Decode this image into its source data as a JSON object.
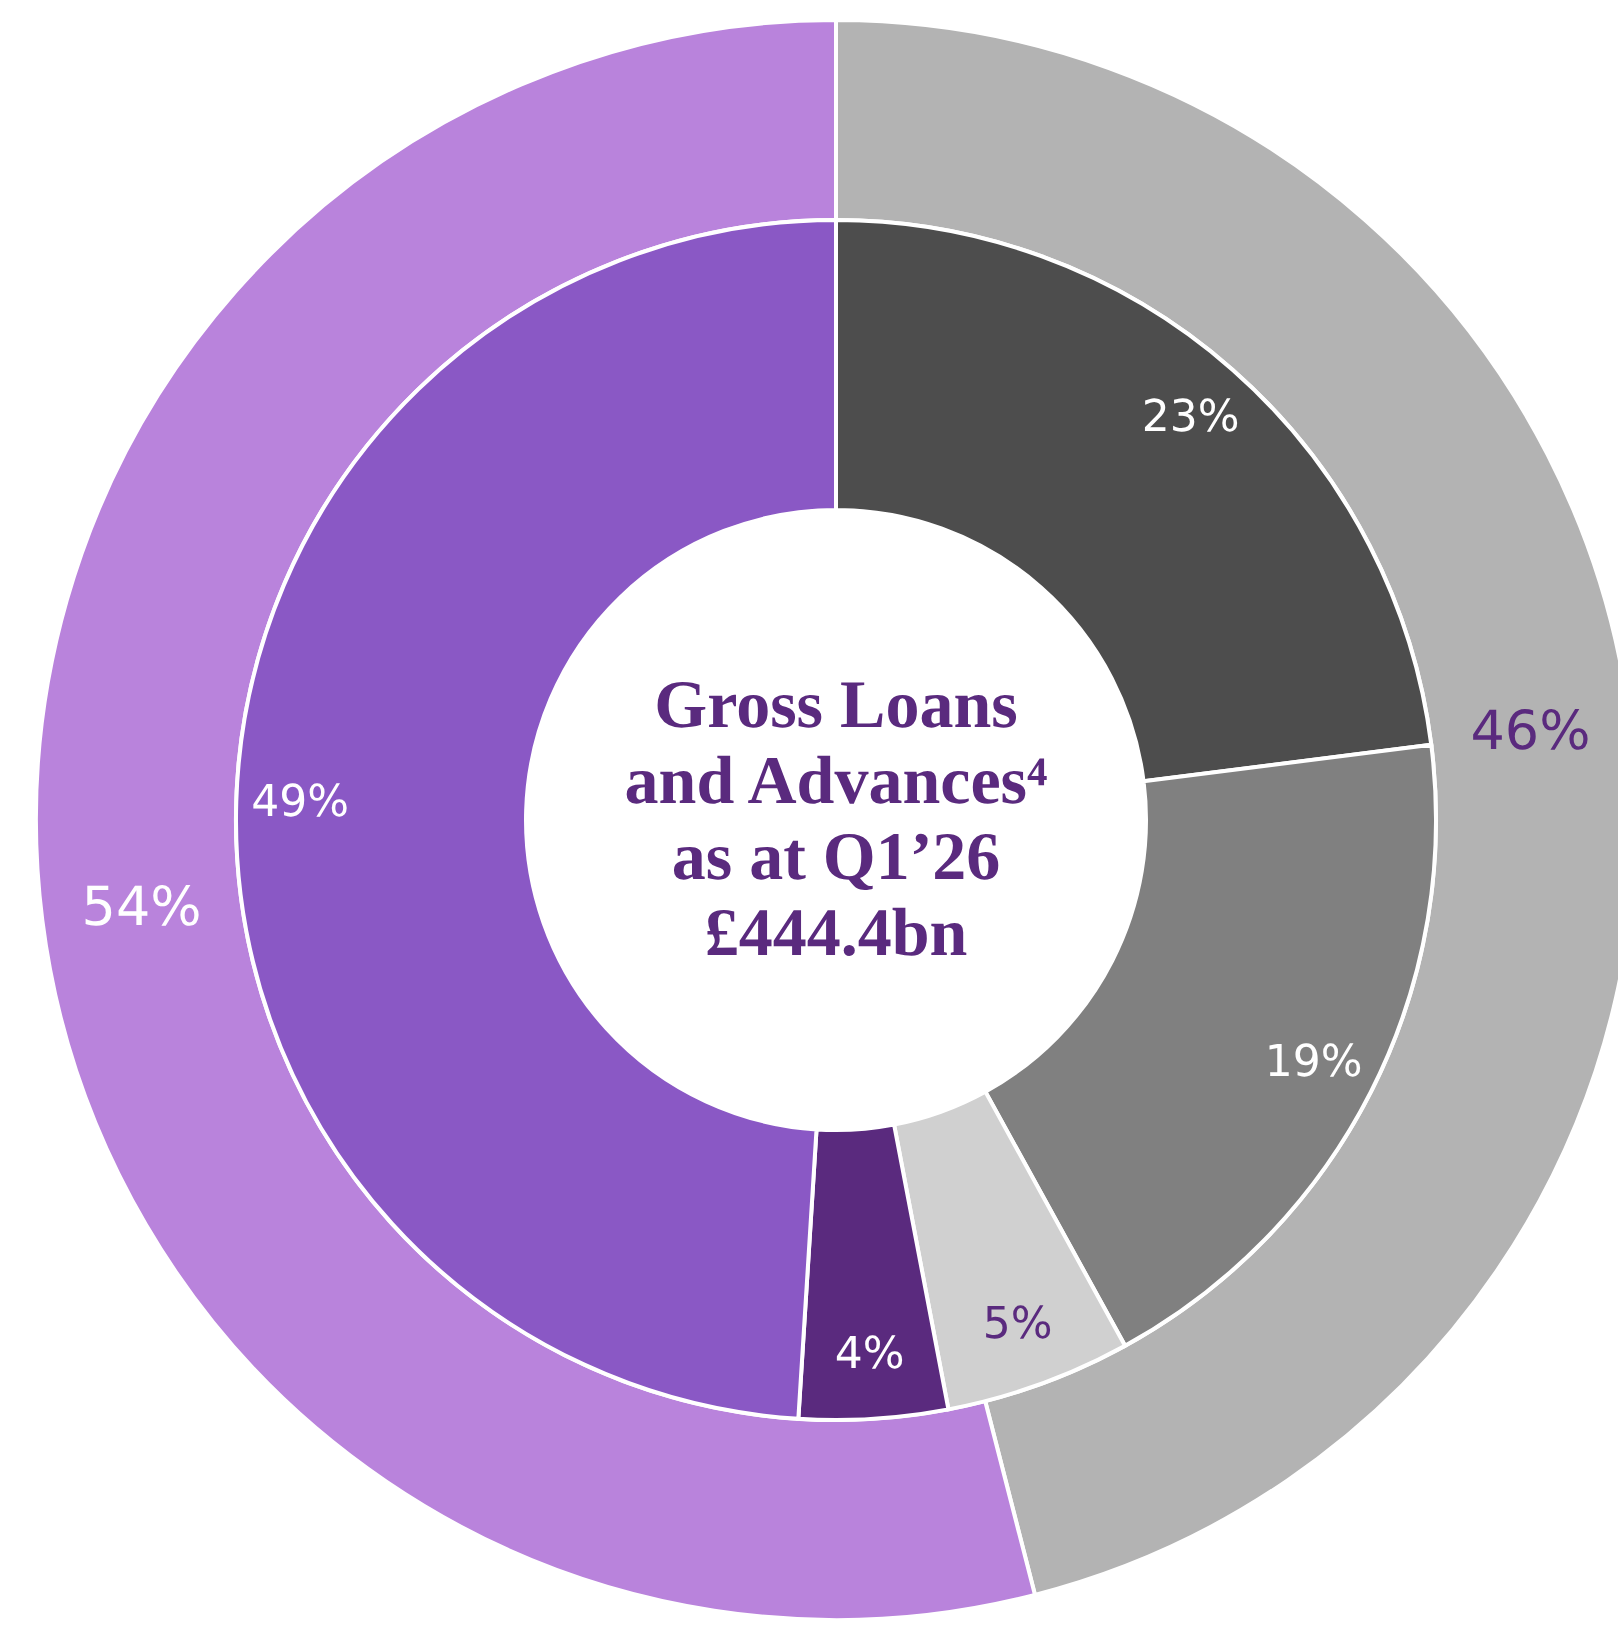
{
  "chart_data": [
    {
      "type": "donut",
      "title": "Gross Loans and Advances⁴ as at Q1’26 £444.4bn",
      "categories": [
        null,
        null,
        null,
        null,
        null
      ],
      "values": [
        23,
        19,
        5,
        4,
        49
      ],
      "colors": [
        "#4d4d4d",
        "#808080",
        "#d0d0d0",
        "#5a2a7e",
        "#8a58c5"
      ],
      "value_labels": [
        "23%",
        "19%",
        "5%",
        "4%",
        "49%"
      ]
    },
    {
      "type": "donut",
      "categories": [
        null,
        null
      ],
      "values": [
        46,
        54
      ],
      "colors": [
        "#b3b3b3",
        "#b983dc"
      ],
      "value_labels": [
        "46%",
        "54%"
      ]
    }
  ]
}
